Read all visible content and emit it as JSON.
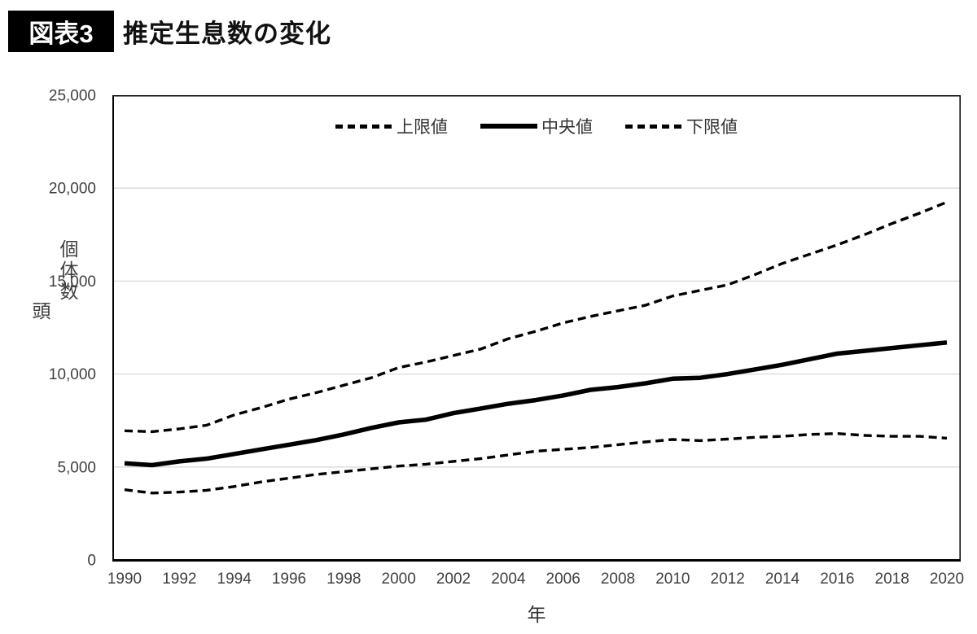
{
  "figure": {
    "badge": "図表3",
    "title": "推定生息数の変化"
  },
  "chart_data": {
    "type": "line",
    "title": "推定生息数の変化",
    "xlabel": "年",
    "ylabel_lines": [
      "個体数",
      "頭"
    ],
    "ylim": [
      0,
      25000
    ],
    "yticks": [
      0,
      5000,
      10000,
      15000,
      20000,
      25000
    ],
    "ytick_labels": [
      "0",
      "5,000",
      "10,000",
      "15,000",
      "20,000",
      "25,000"
    ],
    "x": [
      1990,
      1991,
      1992,
      1993,
      1994,
      1995,
      1996,
      1997,
      1998,
      1999,
      2000,
      2001,
      2002,
      2003,
      2004,
      2005,
      2006,
      2007,
      2008,
      2009,
      2010,
      2011,
      2012,
      2013,
      2014,
      2015,
      2016,
      2017,
      2018,
      2019,
      2020
    ],
    "xtick_labels": [
      "1990",
      "1992",
      "1994",
      "1996",
      "1998",
      "2000",
      "2002",
      "2004",
      "2006",
      "2008",
      "2010",
      "2012",
      "2014",
      "2016",
      "2018",
      "2020"
    ],
    "grid": true,
    "legend_position": "top-center",
    "series": [
      {
        "key": "upper",
        "name": "上限値",
        "style": "dashed",
        "values": [
          6950,
          6900,
          7050,
          7250,
          7800,
          8200,
          8650,
          9000,
          9400,
          9800,
          10350,
          10650,
          11000,
          11350,
          11900,
          12300,
          12750,
          13100,
          13400,
          13700,
          14200,
          14500,
          14800,
          15350,
          15950,
          16450,
          16950,
          17500,
          18100,
          18650,
          19250
        ]
      },
      {
        "key": "median",
        "name": "中央値",
        "style": "solid",
        "values": [
          5200,
          5100,
          5300,
          5450,
          5700,
          5950,
          6200,
          6450,
          6750,
          7100,
          7400,
          7550,
          7900,
          8150,
          8400,
          8600,
          8850,
          9150,
          9300,
          9500,
          9750,
          9800,
          10000,
          10250,
          10500,
          10800,
          11100,
          11250,
          11400,
          11550,
          11700
        ]
      },
      {
        "key": "lower",
        "name": "下限値",
        "style": "dashed",
        "values": [
          3780,
          3600,
          3650,
          3750,
          3950,
          4200,
          4400,
          4600,
          4750,
          4900,
          5050,
          5150,
          5300,
          5450,
          5650,
          5850,
          5950,
          6050,
          6200,
          6350,
          6480,
          6420,
          6500,
          6600,
          6650,
          6750,
          6800,
          6700,
          6650,
          6650,
          6550
        ]
      }
    ],
    "colors": {
      "line": "#000000",
      "grid": "#d9d9d9",
      "axis": "#000000",
      "tick_text": "#404040",
      "badge_bg": "#000000",
      "badge_text": "#ffffff"
    }
  }
}
